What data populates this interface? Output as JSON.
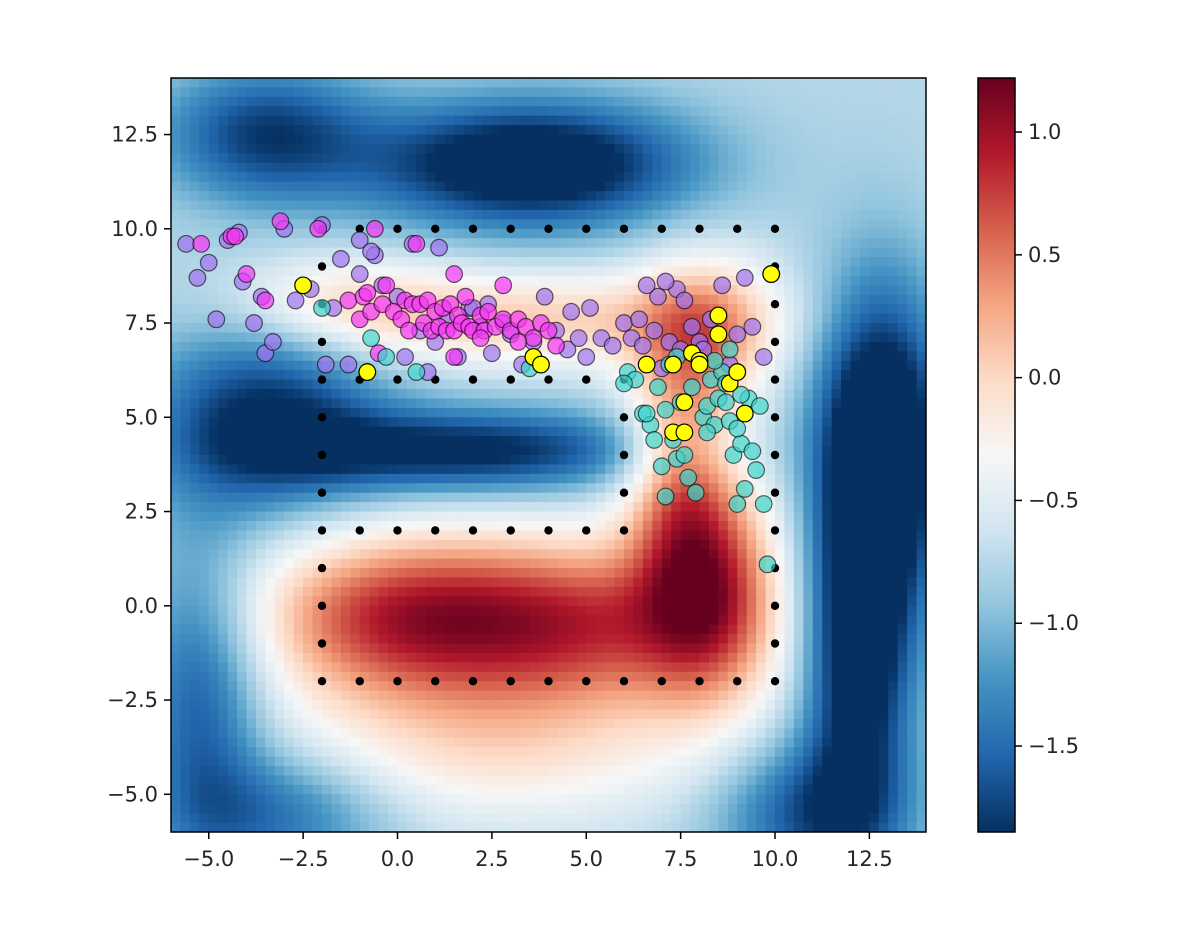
{
  "chart_data": {
    "type": "scatter",
    "title": "",
    "xlabel": "",
    "ylabel": "",
    "xlim": [
      -6,
      14
    ],
    "ylim": [
      -6,
      14
    ],
    "x_ticks": [
      -5.0,
      -2.5,
      0.0,
      2.5,
      5.0,
      7.5,
      10.0,
      12.5
    ],
    "x_tick_labels": [
      "−5.0",
      "−2.5",
      "0.0",
      "2.5",
      "5.0",
      "7.5",
      "10.0",
      "12.5"
    ],
    "y_ticks": [
      -5.0,
      -2.5,
      0.0,
      2.5,
      5.0,
      7.5,
      10.0,
      12.5
    ],
    "y_tick_labels": [
      "−5.0",
      "−2.5",
      "0.0",
      "2.5",
      "5.0",
      "7.5",
      "10.0",
      "12.5"
    ],
    "colorbar": {
      "colormap": "RdBu_r",
      "range": [
        -1.85,
        1.22
      ],
      "ticks": [
        1.0,
        0.5,
        0.0,
        -0.5,
        -1.0,
        -1.5
      ],
      "tick_labels": [
        "1.0",
        "0.5",
        "0.0",
        "−0.5",
        "−1.0",
        "−1.5"
      ]
    },
    "heatmap_components": [
      {
        "weight": 1.5,
        "cx": 0,
        "cy": -0.3,
        "sx": 2.8,
        "sy": 1.6
      },
      {
        "weight": 1.3,
        "cx": 5,
        "cy": -0.5,
        "sx": 2.8,
        "sy": 1.6
      },
      {
        "weight": 1.3,
        "cx": 8.3,
        "cy": 0.5,
        "sx": 1.3,
        "sy": 2.2
      },
      {
        "weight": 1.0,
        "cx": 7.5,
        "cy": 3.8,
        "sx": 1.0,
        "sy": 2.2
      },
      {
        "weight": 0.9,
        "cx": 8.2,
        "cy": 7.3,
        "sx": 1.3,
        "sy": 1.4
      },
      {
        "weight": 0.8,
        "cx": 3.5,
        "cy": 7.6,
        "sx": 3.8,
        "sy": 0.9
      },
      {
        "weight": 0.55,
        "cx": -1.5,
        "cy": 8.1,
        "sx": 2.0,
        "sy": 0.9
      },
      {
        "weight": 0.6,
        "cx": 2.5,
        "cy": -3.8,
        "sx": 4.0,
        "sy": 1.4
      },
      {
        "weight": -1.5,
        "cx": 3.5,
        "cy": 11.7,
        "sx": 3.0,
        "sy": 1.2
      },
      {
        "weight": -1.0,
        "cx": -3.5,
        "cy": 12.5,
        "sx": 2.0,
        "sy": 1.3
      },
      {
        "weight": -1.7,
        "cx": 12.8,
        "cy": 4.2,
        "sx": 1.2,
        "sy": 3.0
      },
      {
        "weight": -1.3,
        "cx": 12.2,
        "cy": -1.5,
        "sx": 1.0,
        "sy": 3.0
      },
      {
        "weight": -1.2,
        "cx": 2.0,
        "cy": 4.1,
        "sx": 3.5,
        "sy": 0.8
      },
      {
        "weight": -1.1,
        "cx": -3.5,
        "cy": 5.0,
        "sx": 2.2,
        "sy": 1.8
      },
      {
        "weight": -0.9,
        "cx": -5.2,
        "cy": -2.5,
        "sx": 1.2,
        "sy": 3.0
      },
      {
        "weight": -0.9,
        "cx": 11.0,
        "cy": -5.5,
        "sx": 1.8,
        "sy": 1.4
      },
      {
        "weight": -0.7,
        "cx": -3.0,
        "cy": -5.5,
        "sx": 2.0,
        "sy": 1.2
      }
    ],
    "heatmap_bias": -0.75,
    "series": [
      {
        "name": "corridor",
        "color": "#000000",
        "points": [
          [
            -2,
            10
          ],
          [
            -1,
            10
          ],
          [
            0,
            10
          ],
          [
            1,
            10
          ],
          [
            2,
            10
          ],
          [
            3,
            10
          ],
          [
            4,
            10
          ],
          [
            5,
            10
          ],
          [
            6,
            10
          ],
          [
            7,
            10
          ],
          [
            8,
            10
          ],
          [
            9,
            10
          ],
          [
            10,
            10
          ],
          [
            -2,
            9
          ],
          [
            -2,
            8
          ],
          [
            -2,
            7
          ],
          [
            -2,
            6
          ],
          [
            -2,
            5
          ],
          [
            -2,
            4
          ],
          [
            -2,
            3
          ],
          [
            -2,
            2
          ],
          [
            -2,
            1
          ],
          [
            -2,
            0
          ],
          [
            -2,
            -1
          ],
          [
            -2,
            -2
          ],
          [
            -1,
            6
          ],
          [
            0,
            6
          ],
          [
            1,
            6
          ],
          [
            2,
            6
          ],
          [
            3,
            6
          ],
          [
            4,
            6
          ],
          [
            5,
            6
          ],
          [
            6,
            6
          ],
          [
            6,
            5
          ],
          [
            6,
            4
          ],
          [
            6,
            3
          ],
          [
            6,
            2
          ],
          [
            -1,
            2
          ],
          [
            0,
            2
          ],
          [
            1,
            2
          ],
          [
            2,
            2
          ],
          [
            3,
            2
          ],
          [
            4,
            2
          ],
          [
            5,
            2
          ],
          [
            -1,
            -2
          ],
          [
            0,
            -2
          ],
          [
            1,
            -2
          ],
          [
            2,
            -2
          ],
          [
            3,
            -2
          ],
          [
            4,
            -2
          ],
          [
            5,
            -2
          ],
          [
            6,
            -2
          ],
          [
            7,
            -2
          ],
          [
            8,
            -2
          ],
          [
            9,
            -2
          ],
          [
            10,
            -2
          ],
          [
            10,
            9
          ],
          [
            10,
            8
          ],
          [
            10,
            7
          ],
          [
            10,
            6
          ],
          [
            10,
            5
          ],
          [
            10,
            4
          ],
          [
            10,
            3
          ],
          [
            10,
            2
          ],
          [
            10,
            1
          ],
          [
            10,
            0
          ],
          [
            10,
            -1
          ]
        ]
      },
      {
        "name": "violet samples",
        "color": "#9f74ee",
        "points": [
          [
            -5.6,
            9.6
          ],
          [
            -5.3,
            8.7
          ],
          [
            -5.0,
            9.1
          ],
          [
            -4.8,
            7.6
          ],
          [
            -4.5,
            9.7
          ],
          [
            -4.2,
            9.9
          ],
          [
            -3.8,
            7.5
          ],
          [
            -3.5,
            6.7
          ],
          [
            -3.3,
            7.0
          ],
          [
            -3.0,
            10.0
          ],
          [
            -2.7,
            8.1
          ],
          [
            -2.3,
            8.4
          ],
          [
            -2.0,
            10.1
          ],
          [
            -1.9,
            6.4
          ],
          [
            -1.7,
            7.9
          ],
          [
            -1.5,
            9.2
          ],
          [
            -1.3,
            6.4
          ],
          [
            -1.0,
            9.7
          ],
          [
            -0.6,
            9.3
          ],
          [
            -0.4,
            8.5
          ],
          [
            0.0,
            8.2
          ],
          [
            0.2,
            6.6
          ],
          [
            0.4,
            9.6
          ],
          [
            0.6,
            7.3
          ],
          [
            0.8,
            6.2
          ],
          [
            1.0,
            7.0
          ],
          [
            1.3,
            7.6
          ],
          [
            1.6,
            6.6
          ],
          [
            1.9,
            7.9
          ],
          [
            2.2,
            7.4
          ],
          [
            2.5,
            6.7
          ],
          [
            2.8,
            7.5
          ],
          [
            3.0,
            7.2
          ],
          [
            3.3,
            6.4
          ],
          [
            3.6,
            7.0
          ],
          [
            3.9,
            8.2
          ],
          [
            4.2,
            7.3
          ],
          [
            4.5,
            6.8
          ],
          [
            4.8,
            7.1
          ],
          [
            5.1,
            7.9
          ],
          [
            5.4,
            7.1
          ],
          [
            5.7,
            6.9
          ],
          [
            6.0,
            7.5
          ],
          [
            6.2,
            7.1
          ],
          [
            6.4,
            7.6
          ],
          [
            6.5,
            6.9
          ],
          [
            6.8,
            7.3
          ],
          [
            6.9,
            8.2
          ],
          [
            7.0,
            6.3
          ],
          [
            7.2,
            7.0
          ],
          [
            7.4,
            8.4
          ],
          [
            7.5,
            6.8
          ],
          [
            7.6,
            8.1
          ],
          [
            7.8,
            7.4
          ],
          [
            8.0,
            7.0
          ],
          [
            8.1,
            6.8
          ],
          [
            8.3,
            7.6
          ],
          [
            8.6,
            8.5
          ],
          [
            8.8,
            6.4
          ],
          [
            9.0,
            7.2
          ],
          [
            9.2,
            8.7
          ],
          [
            9.4,
            7.4
          ],
          [
            9.7,
            6.6
          ],
          [
            9.9,
            8.8
          ],
          [
            -4.1,
            8.6
          ],
          [
            -3.6,
            8.2
          ],
          [
            1.1,
            9.5
          ],
          [
            2.4,
            8.0
          ],
          [
            4.6,
            7.8
          ],
          [
            5.0,
            6.6
          ],
          [
            -1.0,
            8.8
          ],
          [
            -0.7,
            9.4
          ],
          [
            2.0,
            7.9
          ],
          [
            6.6,
            8.5
          ],
          [
            7.1,
            8.6
          ]
        ]
      },
      {
        "name": "magenta samples",
        "color": "#f536f5",
        "points": [
          [
            -5.2,
            9.6
          ],
          [
            -4.4,
            9.8
          ],
          [
            -4.3,
            9.8
          ],
          [
            -4.0,
            8.8
          ],
          [
            -3.5,
            8.1
          ],
          [
            -3.1,
            10.2
          ],
          [
            -2.1,
            10.0
          ],
          [
            -1.3,
            8.1
          ],
          [
            -1.0,
            7.6
          ],
          [
            -0.9,
            8.2
          ],
          [
            -0.8,
            8.3
          ],
          [
            -0.7,
            7.8
          ],
          [
            -0.6,
            10.0
          ],
          [
            -0.5,
            6.7
          ],
          [
            -0.4,
            8.0
          ],
          [
            -0.3,
            8.5
          ],
          [
            -0.1,
            7.8
          ],
          [
            0.1,
            7.6
          ],
          [
            0.2,
            8.1
          ],
          [
            0.3,
            7.3
          ],
          [
            0.4,
            8.0
          ],
          [
            0.6,
            8.0
          ],
          [
            0.7,
            7.5
          ],
          [
            0.8,
            8.1
          ],
          [
            0.9,
            7.3
          ],
          [
            1.0,
            7.8
          ],
          [
            1.1,
            7.4
          ],
          [
            1.2,
            7.9
          ],
          [
            1.3,
            7.3
          ],
          [
            1.4,
            8.0
          ],
          [
            1.5,
            7.3
          ],
          [
            1.6,
            7.7
          ],
          [
            1.7,
            7.5
          ],
          [
            1.8,
            8.2
          ],
          [
            1.9,
            7.4
          ],
          [
            2.0,
            7.3
          ],
          [
            2.2,
            7.7
          ],
          [
            2.3,
            7.3
          ],
          [
            2.4,
            7.8
          ],
          [
            2.6,
            7.4
          ],
          [
            2.8,
            7.6
          ],
          [
            3.0,
            7.3
          ],
          [
            3.2,
            7.6
          ],
          [
            3.4,
            7.4
          ],
          [
            3.6,
            7.1
          ],
          [
            3.8,
            7.5
          ],
          [
            4.0,
            7.3
          ],
          [
            4.2,
            6.9
          ],
          [
            2.8,
            8.5
          ],
          [
            1.5,
            8.8
          ],
          [
            0.5,
            9.6
          ],
          [
            1.5,
            6.6
          ],
          [
            2.2,
            7.1
          ],
          [
            3.2,
            7.0
          ]
        ]
      },
      {
        "name": "teal samples",
        "color": "#3ed4cc",
        "points": [
          [
            -2.0,
            7.9
          ],
          [
            -0.7,
            7.1
          ],
          [
            0.5,
            6.2
          ],
          [
            3.5,
            6.3
          ],
          [
            6.1,
            6.2
          ],
          [
            6.3,
            6.0
          ],
          [
            6.5,
            5.1
          ],
          [
            6.7,
            4.8
          ],
          [
            6.8,
            4.4
          ],
          [
            6.9,
            5.8
          ],
          [
            7.0,
            3.7
          ],
          [
            7.1,
            2.9
          ],
          [
            7.2,
            6.4
          ],
          [
            7.3,
            4.4
          ],
          [
            7.4,
            3.9
          ],
          [
            7.5,
            5.4
          ],
          [
            7.6,
            4.0
          ],
          [
            7.7,
            3.4
          ],
          [
            7.8,
            5.8
          ],
          [
            7.9,
            3.0
          ],
          [
            8.0,
            6.5
          ],
          [
            8.1,
            5.0
          ],
          [
            8.2,
            5.3
          ],
          [
            8.3,
            6.0
          ],
          [
            8.4,
            4.8
          ],
          [
            8.5,
            5.5
          ],
          [
            8.6,
            6.2
          ],
          [
            8.7,
            5.9
          ],
          [
            8.8,
            4.9
          ],
          [
            8.9,
            4.0
          ],
          [
            9.0,
            2.7
          ],
          [
            9.1,
            4.3
          ],
          [
            9.2,
            3.1
          ],
          [
            9.3,
            5.5
          ],
          [
            9.4,
            4.1
          ],
          [
            9.5,
            3.6
          ],
          [
            9.6,
            5.3
          ],
          [
            9.7,
            2.7
          ],
          [
            9.8,
            1.1
          ],
          [
            6.6,
            5.1
          ],
          [
            7.1,
            5.2
          ],
          [
            8.2,
            4.6
          ],
          [
            8.7,
            5.4
          ],
          [
            9.0,
            4.7
          ],
          [
            7.4,
            6.6
          ],
          [
            8.4,
            6.5
          ],
          [
            8.8,
            6.8
          ],
          [
            9.1,
            5.6
          ],
          [
            -0.3,
            6.6
          ],
          [
            6.0,
            5.9
          ]
        ]
      },
      {
        "name": "highlighted points",
        "color": "#ffff00",
        "points": [
          [
            -2.5,
            8.5
          ],
          [
            -0.8,
            6.2
          ],
          [
            3.6,
            6.6
          ],
          [
            3.8,
            6.4
          ],
          [
            6.6,
            6.4
          ],
          [
            7.3,
            6.4
          ],
          [
            7.3,
            4.6
          ],
          [
            7.6,
            5.4
          ],
          [
            7.6,
            4.6
          ],
          [
            7.8,
            6.7
          ],
          [
            8.0,
            6.5
          ],
          [
            8.0,
            6.4
          ],
          [
            8.5,
            7.2
          ],
          [
            8.5,
            7.7
          ],
          [
            8.8,
            5.9
          ],
          [
            9.0,
            6.2
          ],
          [
            9.2,
            5.1
          ],
          [
            9.9,
            8.8
          ]
        ]
      }
    ]
  }
}
